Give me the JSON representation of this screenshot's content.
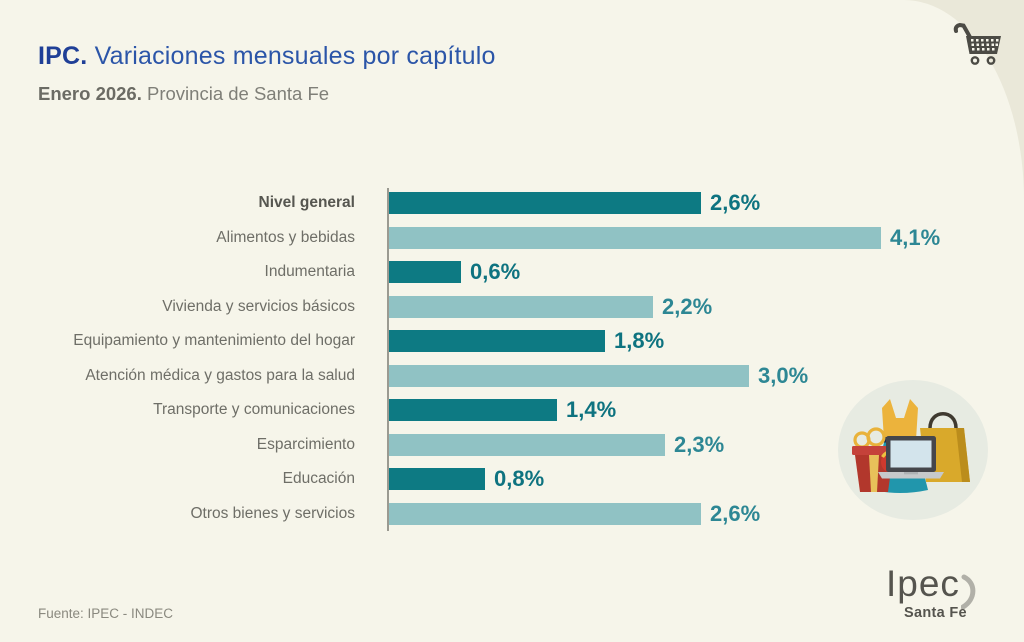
{
  "header": {
    "title_prefix": "IPC.",
    "title_rest": "Variaciones mensuales por capítulo",
    "subtitle_bold": "Enero 2026.",
    "subtitle_rest": "Provincia de Santa Fe"
  },
  "chart_data": {
    "type": "bar",
    "orientation": "horizontal",
    "title": "IPC. Variaciones mensuales por capítulo",
    "subtitle": "Enero 2026. Provincia de Santa Fe",
    "categories": [
      "Nivel general",
      "Alimentos y bebidas",
      "Indumentaria",
      "Vivienda y servicios básicos",
      "Equipamiento y mantenimiento del hogar",
      "Atención médica y gastos para la salud",
      "Transporte y comunicaciones",
      "Esparcimiento",
      "Educación",
      "Otros bienes y servicios"
    ],
    "values": [
      2.6,
      4.1,
      0.6,
      2.2,
      1.8,
      3.0,
      1.4,
      2.3,
      0.8,
      2.6
    ],
    "value_labels": [
      "2,6%",
      "4,1%",
      "0,6%",
      "2,2%",
      "1,8%",
      "3,0%",
      "1,4%",
      "2,3%",
      "0,8%",
      "2,6%"
    ],
    "unit": "%",
    "xlim": [
      0,
      4.5
    ],
    "grid": false,
    "legend": null,
    "bold_category_index": 0,
    "bar_color_pattern": [
      "dark",
      "light"
    ],
    "colors": {
      "bar_dark": "#0d7a83",
      "bar_light": "#90c2c4",
      "value_dark": "#0e7380",
      "value_light": "#2d8794"
    }
  },
  "footer": {
    "source": "Fuente: IPEC - INDEC"
  },
  "logo": {
    "text": "Ipec",
    "subtext": "Santa Fe"
  },
  "icons": {
    "top_right": "shopping-cart-icon",
    "bottom_right": "shopping-items-illustration"
  },
  "colors": {
    "background_main": "#f6f5ea",
    "background_corner": "#eae8d9",
    "title_accent": "#1f3f97",
    "title_text": "#2b55a8",
    "subtitle_bold": "#6b6b64",
    "subtitle_text": "#7f7f78",
    "category_text": "#6e6e67",
    "category_bold": "#565650",
    "axis_line": "#9b9a91",
    "footer_text": "#8a897f",
    "logo_text": "#55544e",
    "logo_swoosh": "#b1b0a8",
    "cart_icon": "#4c4b45",
    "illustration_circle": "#e7ebe2"
  }
}
